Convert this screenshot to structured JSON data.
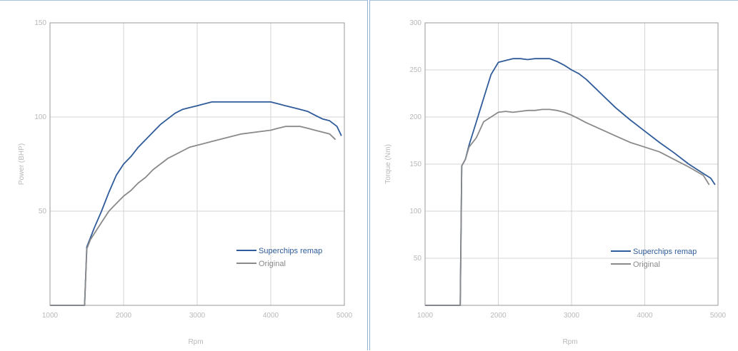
{
  "colors": {
    "remap": "#2f5b9a",
    "original": "#8a8a8a"
  },
  "chart_data": [
    {
      "type": "line",
      "xlabel": "Rpm",
      "ylabel": "Power (BHP)",
      "xlim": [
        1000,
        5000
      ],
      "ylim": [
        0,
        150
      ],
      "xticks": [
        "1000",
        "2000",
        "3000",
        "4000",
        "5000"
      ],
      "yticks": [
        "50",
        "100",
        "150"
      ],
      "ytick_values": [
        50,
        100,
        150
      ],
      "xtick_values": [
        1000,
        2000,
        3000,
        4000,
        5000
      ],
      "grid": true,
      "legend_position": "bottom-right",
      "series": [
        {
          "name": "Superchips remap",
          "color": "#2f5b9a",
          "x": [
            1000,
            1470,
            1500,
            1550,
            1600,
            1700,
            1800,
            1900,
            2000,
            2100,
            2200,
            2300,
            2400,
            2500,
            2600,
            2700,
            2800,
            2900,
            3000,
            3100,
            3200,
            3400,
            3600,
            3800,
            4000,
            4100,
            4200,
            4300,
            4400,
            4500,
            4600,
            4700,
            4800,
            4900,
            4960
          ],
          "y": [
            0,
            0,
            31,
            36,
            41,
            50,
            60,
            69,
            75,
            79,
            84,
            88,
            92,
            96,
            99,
            102,
            104,
            105,
            106,
            107,
            108,
            108,
            108,
            108,
            108,
            107,
            106,
            105,
            104,
            103,
            101,
            99,
            98,
            95,
            90
          ]
        },
        {
          "name": "Original",
          "color": "#8a8a8a",
          "x": [
            1000,
            1470,
            1500,
            1550,
            1600,
            1700,
            1800,
            1900,
            2000,
            2100,
            2200,
            2300,
            2400,
            2500,
            2600,
            2700,
            2800,
            2900,
            3000,
            3100,
            3200,
            3400,
            3600,
            3800,
            4000,
            4100,
            4200,
            4300,
            4400,
            4500,
            4600,
            4700,
            4800,
            4880
          ],
          "y": [
            0,
            0,
            30,
            35,
            38,
            44,
            50,
            54,
            58,
            61,
            65,
            68,
            72,
            75,
            78,
            80,
            82,
            84,
            85,
            86,
            87,
            89,
            91,
            92,
            93,
            94,
            95,
            95,
            95,
            94,
            93,
            92,
            91,
            88
          ]
        }
      ]
    },
    {
      "type": "line",
      "xlabel": "Rpm",
      "ylabel": "Torque (Nm)",
      "xlim": [
        1000,
        5000
      ],
      "ylim": [
        0,
        300
      ],
      "xticks": [
        "1000",
        "2000",
        "3000",
        "4000",
        "5000"
      ],
      "yticks": [
        "50",
        "100",
        "150",
        "200",
        "250",
        "300"
      ],
      "ytick_values": [
        50,
        100,
        150,
        200,
        250,
        300
      ],
      "xtick_values": [
        1000,
        2000,
        3000,
        4000,
        5000
      ],
      "grid": true,
      "legend_position": "bottom-right",
      "series": [
        {
          "name": "Superchips remap",
          "color": "#2f5b9a",
          "x": [
            1000,
            1480,
            1500,
            1550,
            1600,
            1700,
            1800,
            1900,
            2000,
            2100,
            2200,
            2300,
            2400,
            2500,
            2600,
            2700,
            2800,
            2900,
            3000,
            3100,
            3200,
            3400,
            3600,
            3800,
            4000,
            4200,
            4400,
            4600,
            4800,
            4900,
            4960
          ],
          "y": [
            0,
            0,
            148,
            155,
            170,
            195,
            220,
            245,
            258,
            260,
            262,
            262,
            261,
            262,
            262,
            262,
            259,
            255,
            250,
            246,
            240,
            225,
            210,
            197,
            185,
            173,
            162,
            150,
            140,
            135,
            128
          ]
        },
        {
          "name": "Original",
          "color": "#8a8a8a",
          "x": [
            1000,
            1480,
            1500,
            1550,
            1600,
            1700,
            1800,
            1900,
            2000,
            2100,
            2200,
            2300,
            2400,
            2500,
            2600,
            2700,
            2800,
            2900,
            3000,
            3100,
            3200,
            3400,
            3600,
            3800,
            4000,
            4200,
            4400,
            4600,
            4800,
            4880
          ],
          "y": [
            0,
            0,
            148,
            155,
            168,
            178,
            195,
            200,
            205,
            206,
            205,
            206,
            207,
            207,
            208,
            208,
            207,
            205,
            202,
            198,
            194,
            187,
            180,
            173,
            168,
            163,
            155,
            147,
            138,
            128
          ]
        }
      ]
    }
  ]
}
